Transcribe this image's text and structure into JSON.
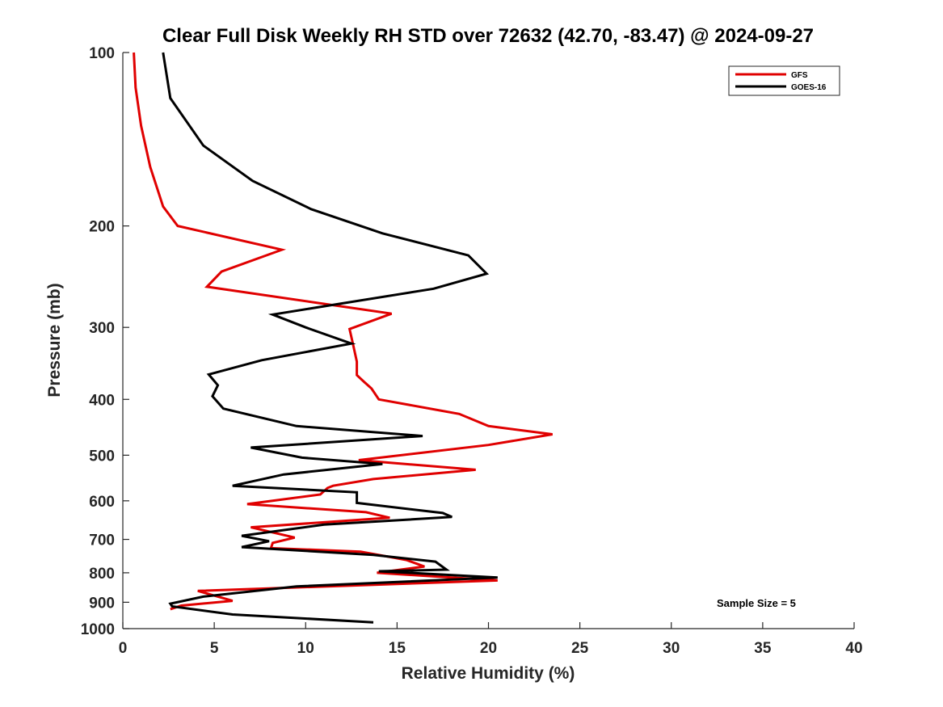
{
  "chart_data": {
    "type": "line",
    "title": "Clear Full Disk Weekly RH STD over 72632 (42.70, -83.47) @ 2024-09-27",
    "xlabel": "Relative Humidity (%)",
    "ylabel": "Pressure (mb)",
    "xlim": [
      0,
      40
    ],
    "ylim": [
      1000,
      100
    ],
    "yscale": "log",
    "y_reversed": true,
    "xticks": [
      0,
      5,
      10,
      15,
      20,
      25,
      30,
      35,
      40
    ],
    "yticks": [
      100,
      200,
      300,
      400,
      500,
      600,
      700,
      800,
      900,
      1000
    ],
    "legend_position": "top-right",
    "annotation": "Sample Size = 5",
    "series": [
      {
        "name": "GFS",
        "color": "#e00000",
        "points": [
          [
            0.6,
            100
          ],
          [
            0.7,
            115
          ],
          [
            1.0,
            134
          ],
          [
            1.5,
            158
          ],
          [
            2.2,
            185
          ],
          [
            3.0,
            200
          ],
          [
            8.7,
            220
          ],
          [
            5.4,
            240
          ],
          [
            4.6,
            255
          ],
          [
            14.7,
            284
          ],
          [
            12.4,
            302
          ],
          [
            12.6,
            322
          ],
          [
            12.8,
            344
          ],
          [
            12.8,
            363
          ],
          [
            13.2,
            373
          ],
          [
            13.6,
            383
          ],
          [
            14.0,
            400
          ],
          [
            18.4,
            424
          ],
          [
            20.0,
            445
          ],
          [
            23.5,
            460
          ],
          [
            20.0,
            480
          ],
          [
            12.9,
            510
          ],
          [
            19.3,
            530
          ],
          [
            13.7,
            550
          ],
          [
            11.5,
            565
          ],
          [
            11.2,
            570
          ],
          [
            10.8,
            585
          ],
          [
            6.8,
            608
          ],
          [
            13.3,
            628
          ],
          [
            14.6,
            642
          ],
          [
            7.0,
            667
          ],
          [
            9.4,
            695
          ],
          [
            8.2,
            710
          ],
          [
            8.1,
            725
          ],
          [
            13.0,
            735
          ],
          [
            15.5,
            760
          ],
          [
            16.5,
            780
          ],
          [
            13.9,
            800
          ],
          [
            20.5,
            825
          ],
          [
            4.1,
            860
          ],
          [
            6.0,
            895
          ],
          [
            3.2,
            912
          ],
          [
            2.6,
            925
          ]
        ]
      },
      {
        "name": "GOES-16",
        "color": "#000000",
        "points": [
          [
            2.2,
            100
          ],
          [
            2.6,
            120
          ],
          [
            4.4,
            145
          ],
          [
            7.1,
            167
          ],
          [
            10.3,
            187
          ],
          [
            14.2,
            206
          ],
          [
            18.9,
            225
          ],
          [
            19.9,
            242
          ],
          [
            17.0,
            257
          ],
          [
            8.2,
            285
          ],
          [
            10.0,
            300
          ],
          [
            12.5,
            320
          ],
          [
            7.6,
            342
          ],
          [
            4.7,
            362
          ],
          [
            5.2,
            378
          ],
          [
            4.9,
            395
          ],
          [
            5.5,
            415
          ],
          [
            9.5,
            445
          ],
          [
            16.4,
            463
          ],
          [
            7.0,
            485
          ],
          [
            9.8,
            505
          ],
          [
            14.2,
            518
          ],
          [
            8.8,
            540
          ],
          [
            6.0,
            565
          ],
          [
            12.8,
            580
          ],
          [
            12.8,
            605
          ],
          [
            17.5,
            630
          ],
          [
            18.0,
            640
          ],
          [
            11.0,
            660
          ],
          [
            6.5,
            690
          ],
          [
            8.0,
            705
          ],
          [
            6.5,
            722
          ],
          [
            13.7,
            745
          ],
          [
            17.1,
            765
          ],
          [
            17.7,
            790
          ],
          [
            14.0,
            795
          ],
          [
            20.5,
            815
          ],
          [
            9.5,
            845
          ],
          [
            4.4,
            880
          ],
          [
            2.6,
            905
          ],
          [
            2.7,
            915
          ],
          [
            6.0,
            945
          ],
          [
            13.7,
            975
          ]
        ]
      }
    ]
  }
}
